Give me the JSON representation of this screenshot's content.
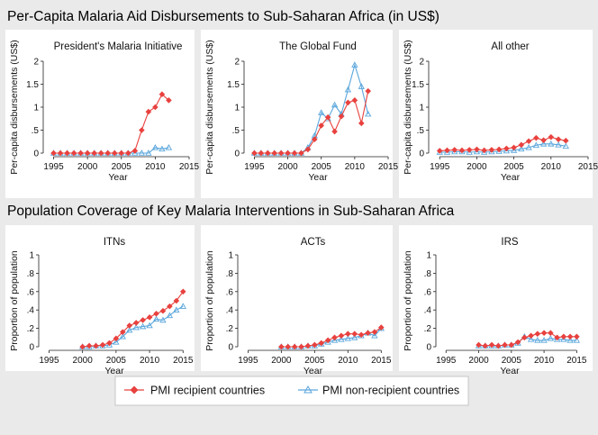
{
  "header_top": "Per-Capita Malaria Aid Disbursements to Sub-Saharan Africa (in US$)",
  "header_bottom": "Population Coverage of Key Malaria Interventions in Sub-Saharan Africa",
  "colors": {
    "recipient": "#e8413e",
    "nonrecipient": "#5aa6dc",
    "panel": "#ffffff",
    "background": "#eaeaea"
  },
  "legend": {
    "recipient_label": "PMI recipient countries",
    "nonrecipient_label": "PMI non-recipient countries"
  },
  "chart_data": [
    {
      "type": "line",
      "title": "President's Malaria Initiative",
      "xlabel": "Year",
      "ylabel": "Per-capita disbursements (US$)",
      "xlim": [
        1994,
        2015
      ],
      "ylim": [
        0,
        2
      ],
      "xticks": [
        1995,
        2000,
        2005,
        2010,
        2015
      ],
      "xtick_labels": [
        "1995",
        "2000",
        "2005",
        "2010",
        "2015"
      ],
      "yticks": [
        0,
        0.5,
        1,
        1.5,
        2
      ],
      "ytick_labels": [
        "0",
        ".5",
        "1",
        "1.5",
        "2"
      ],
      "series": [
        {
          "name": "PMI recipient countries",
          "x": [
            1995,
            1996,
            1997,
            1998,
            1999,
            2000,
            2001,
            2002,
            2003,
            2004,
            2005,
            2006,
            2007,
            2008,
            2009,
            2010,
            2011,
            2012
          ],
          "values": [
            0,
            0,
            0,
            0,
            0,
            0,
            0,
            0,
            0,
            0,
            0,
            0,
            0.05,
            0.5,
            0.9,
            1.0,
            1.28,
            1.15
          ]
        },
        {
          "name": "PMI non-recipient countries",
          "x": [
            1995,
            1996,
            1997,
            1998,
            1999,
            2000,
            2001,
            2002,
            2003,
            2004,
            2005,
            2006,
            2007,
            2008,
            2009,
            2010,
            2011,
            2012
          ],
          "values": [
            0,
            0,
            0,
            0,
            0,
            0,
            0,
            0,
            0,
            0,
            0,
            0,
            0,
            0,
            0,
            0.12,
            0.09,
            0.12
          ]
        }
      ]
    },
    {
      "type": "line",
      "title": "The Global Fund",
      "xlabel": "Year",
      "ylabel": "Per-capita disbursements (US$)",
      "xlim": [
        1994,
        2015
      ],
      "ylim": [
        0,
        2
      ],
      "xticks": [
        1995,
        2000,
        2005,
        2010,
        2015
      ],
      "xtick_labels": [
        "1995",
        "2000",
        "2005",
        "2010",
        "2015"
      ],
      "yticks": [
        0,
        0.5,
        1,
        1.5,
        2
      ],
      "ytick_labels": [
        "0",
        ".5",
        "1",
        "1.5",
        "2"
      ],
      "series": [
        {
          "name": "PMI recipient countries",
          "x": [
            1995,
            1996,
            1997,
            1998,
            1999,
            2000,
            2001,
            2002,
            2003,
            2004,
            2005,
            2006,
            2007,
            2008,
            2009,
            2010,
            2011,
            2012
          ],
          "values": [
            0,
            0,
            0,
            0,
            0,
            0,
            0,
            0,
            0.08,
            0.3,
            0.6,
            0.78,
            0.47,
            0.8,
            1.1,
            1.15,
            0.65,
            1.35
          ]
        },
        {
          "name": "PMI non-recipient countries",
          "x": [
            1995,
            1996,
            1997,
            1998,
            1999,
            2000,
            2001,
            2002,
            2003,
            2004,
            2005,
            2006,
            2007,
            2008,
            2009,
            2010,
            2011,
            2012
          ],
          "values": [
            0,
            0,
            0,
            0,
            0,
            0,
            0,
            0,
            0.12,
            0.38,
            0.88,
            0.75,
            1.05,
            0.85,
            1.38,
            1.92,
            1.45,
            0.85
          ]
        }
      ]
    },
    {
      "type": "line",
      "title": "All other",
      "xlabel": "Year",
      "ylabel": "Per-capita disbursements (US$)",
      "xlim": [
        1994,
        2015
      ],
      "ylim": [
        0,
        2
      ],
      "xticks": [
        1995,
        2000,
        2005,
        2010,
        2015
      ],
      "xtick_labels": [
        "1995",
        "2000",
        "2005",
        "2010",
        "2015"
      ],
      "yticks": [
        0,
        0.5,
        1,
        1.5,
        2
      ],
      "ytick_labels": [
        "0",
        ".5",
        "1",
        "1.5",
        "2"
      ],
      "series": [
        {
          "name": "PMI recipient countries",
          "x": [
            1995,
            1996,
            1997,
            1998,
            1999,
            2000,
            2001,
            2002,
            2003,
            2004,
            2005,
            2006,
            2007,
            2008,
            2009,
            2010,
            2011,
            2012
          ],
          "values": [
            0.05,
            0.06,
            0.07,
            0.06,
            0.07,
            0.08,
            0.06,
            0.07,
            0.08,
            0.1,
            0.12,
            0.18,
            0.26,
            0.33,
            0.28,
            0.35,
            0.3,
            0.27
          ]
        },
        {
          "name": "PMI non-recipient countries",
          "x": [
            1995,
            1996,
            1997,
            1998,
            1999,
            2000,
            2001,
            2002,
            2003,
            2004,
            2005,
            2006,
            2007,
            2008,
            2009,
            2010,
            2011,
            2012
          ],
          "values": [
            0.02,
            0.02,
            0.03,
            0.03,
            0.02,
            0.03,
            0.02,
            0.03,
            0.04,
            0.05,
            0.06,
            0.09,
            0.12,
            0.17,
            0.2,
            0.2,
            0.18,
            0.15
          ]
        }
      ]
    },
    {
      "type": "line",
      "title": "ITNs",
      "xlabel": "Year",
      "ylabel": "Proportion of population",
      "xlim": [
        1994,
        2015.5
      ],
      "ylim": [
        0,
        1
      ],
      "xticks": [
        1995,
        2000,
        2005,
        2010,
        2015
      ],
      "xtick_labels": [
        "1995",
        "2000",
        "2005",
        "2010",
        "2015"
      ],
      "yticks": [
        0,
        0.2,
        0.4,
        0.6,
        0.8,
        1
      ],
      "ytick_labels": [
        "0",
        ".2",
        ".4",
        ".6",
        ".8",
        "1"
      ],
      "series": [
        {
          "name": "PMI recipient countries",
          "x": [
            2000,
            2001,
            2002,
            2003,
            2004,
            2005,
            2006,
            2007,
            2008,
            2009,
            2010,
            2011,
            2012,
            2013,
            2014,
            2015
          ],
          "values": [
            0,
            0.01,
            0.01,
            0.02,
            0.04,
            0.09,
            0.16,
            0.23,
            0.26,
            0.29,
            0.32,
            0.36,
            0.39,
            0.44,
            0.5,
            0.6
          ]
        },
        {
          "name": "PMI non-recipient countries",
          "x": [
            2000,
            2001,
            2002,
            2003,
            2004,
            2005,
            2006,
            2007,
            2008,
            2009,
            2010,
            2011,
            2012,
            2013,
            2014,
            2015
          ],
          "values": [
            0,
            0,
            0.01,
            0.01,
            0.02,
            0.05,
            0.11,
            0.18,
            0.21,
            0.22,
            0.23,
            0.3,
            0.29,
            0.34,
            0.4,
            0.44
          ]
        }
      ]
    },
    {
      "type": "line",
      "title": "ACTs",
      "xlabel": "Year",
      "ylabel": "Proportion of population",
      "xlim": [
        1994,
        2015.5
      ],
      "ylim": [
        0,
        1
      ],
      "xticks": [
        1995,
        2000,
        2005,
        2010,
        2015
      ],
      "xtick_labels": [
        "1995",
        "2000",
        "2005",
        "2010",
        "2015"
      ],
      "yticks": [
        0,
        0.2,
        0.4,
        0.6,
        0.8,
        1
      ],
      "ytick_labels": [
        "0",
        ".2",
        ".4",
        ".6",
        ".8",
        "1"
      ],
      "series": [
        {
          "name": "PMI recipient countries",
          "x": [
            2000,
            2001,
            2002,
            2003,
            2004,
            2005,
            2006,
            2007,
            2008,
            2009,
            2010,
            2011,
            2012,
            2013,
            2014,
            2015
          ],
          "values": [
            0,
            0,
            0,
            0,
            0.01,
            0.02,
            0.04,
            0.07,
            0.1,
            0.12,
            0.14,
            0.14,
            0.13,
            0.15,
            0.16,
            0.21
          ]
        },
        {
          "name": "PMI non-recipient countries",
          "x": [
            2000,
            2001,
            2002,
            2003,
            2004,
            2005,
            2006,
            2007,
            2008,
            2009,
            2010,
            2011,
            2012,
            2013,
            2014,
            2015
          ],
          "values": [
            0,
            0,
            0,
            0,
            0.01,
            0.01,
            0.03,
            0.05,
            0.07,
            0.08,
            0.09,
            0.1,
            0.12,
            0.15,
            0.12,
            0.2
          ]
        }
      ]
    },
    {
      "type": "line",
      "title": "IRS",
      "xlabel": "Year",
      "ylabel": "Proportion of population",
      "xlim": [
        1994,
        2015.5
      ],
      "ylim": [
        0,
        1
      ],
      "xticks": [
        1995,
        2000,
        2005,
        2010,
        2015
      ],
      "xtick_labels": [
        "1995",
        "2000",
        "2005",
        "2010",
        "2015"
      ],
      "yticks": [
        0,
        0.2,
        0.4,
        0.6,
        0.8,
        1
      ],
      "ytick_labels": [
        "0",
        ".2",
        ".4",
        ".6",
        ".8",
        "1"
      ],
      "series": [
        {
          "name": "PMI recipient countries",
          "x": [
            2000,
            2001,
            2002,
            2003,
            2004,
            2005,
            2006,
            2007,
            2008,
            2009,
            2010,
            2011,
            2012,
            2013,
            2014,
            2015
          ],
          "values": [
            0.02,
            0.01,
            0.02,
            0.01,
            0.02,
            0.02,
            0.05,
            0.1,
            0.12,
            0.14,
            0.15,
            0.15,
            0.1,
            0.11,
            0.11,
            0.11
          ]
        },
        {
          "name": "PMI non-recipient countries",
          "x": [
            2000,
            2001,
            2002,
            2003,
            2004,
            2005,
            2006,
            2007,
            2008,
            2009,
            2010,
            2011,
            2012,
            2013,
            2014,
            2015
          ],
          "values": [
            0.01,
            0.01,
            0.01,
            0.01,
            0.02,
            0.02,
            0.04,
            0.11,
            0.08,
            0.07,
            0.07,
            0.09,
            0.08,
            0.08,
            0.07,
            0.07
          ]
        }
      ]
    }
  ]
}
